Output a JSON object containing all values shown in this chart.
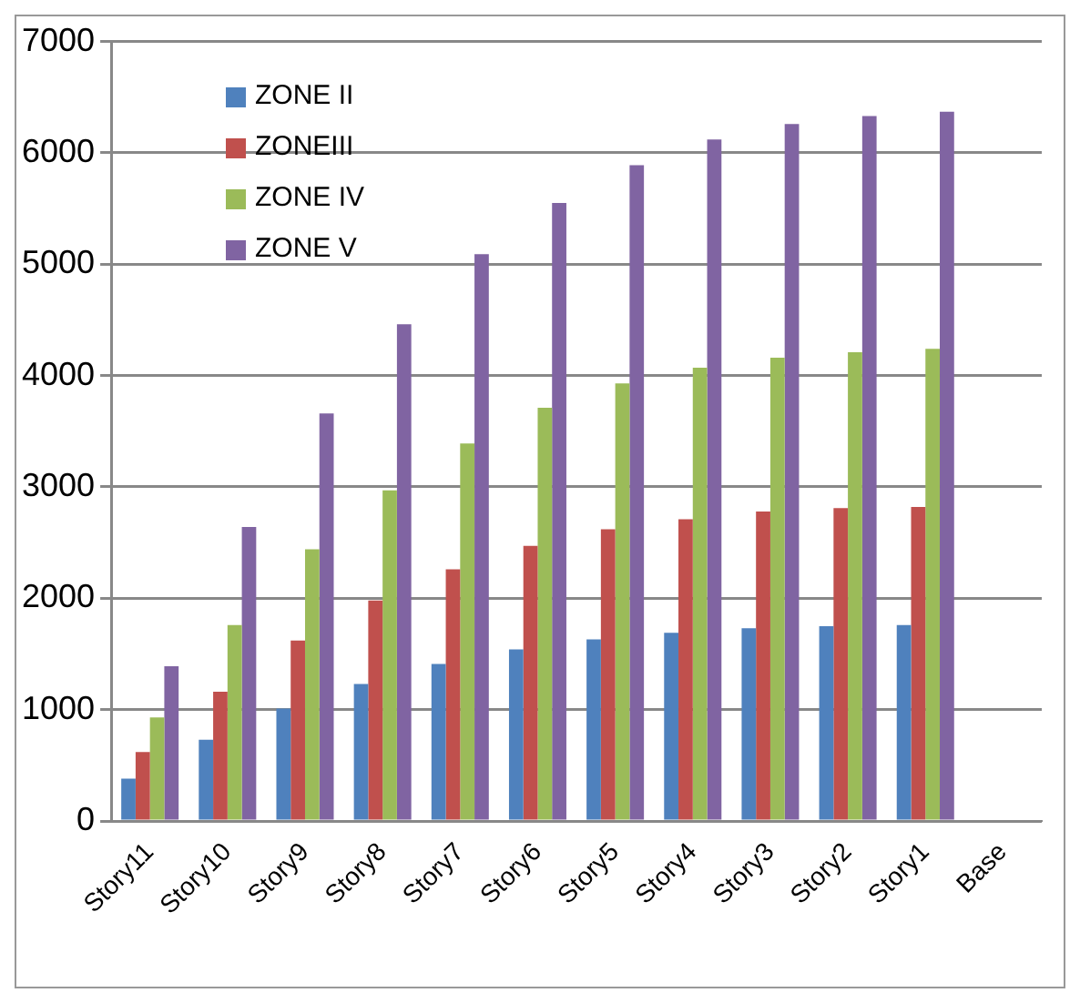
{
  "chart_data": {
    "type": "bar",
    "categories": [
      "Story11",
      "Story10",
      "Story9",
      "Story8",
      "Story7",
      "Story6",
      "Story5",
      "Story4",
      "Story3",
      "Story2",
      "Story1",
      "Base"
    ],
    "series": [
      {
        "name": "ZONE II",
        "color": "#4f81bd",
        "values": [
          380,
          730,
          1010,
          1230,
          1410,
          1540,
          1630,
          1690,
          1730,
          1750,
          1760,
          null
        ]
      },
      {
        "name": "ZONEIII",
        "color": "#c0504d",
        "values": [
          620,
          1160,
          1620,
          1980,
          2260,
          2470,
          2620,
          2710,
          2780,
          2810,
          2820,
          null
        ]
      },
      {
        "name": "ZONE IV",
        "color": "#9bbb59",
        "values": [
          930,
          1760,
          2440,
          2970,
          3390,
          3710,
          3930,
          4070,
          4160,
          4210,
          4240,
          null
        ]
      },
      {
        "name": "ZONE V",
        "color": "#8064a2",
        "values": [
          1390,
          2640,
          3660,
          4460,
          5090,
          5550,
          5890,
          6120,
          6260,
          6330,
          6370,
          null
        ]
      }
    ],
    "ylim": [
      0,
      7000
    ],
    "yticks": [
      0,
      1000,
      2000,
      3000,
      4000,
      5000,
      6000,
      7000
    ],
    "grid": "y",
    "legend": "top left"
  }
}
